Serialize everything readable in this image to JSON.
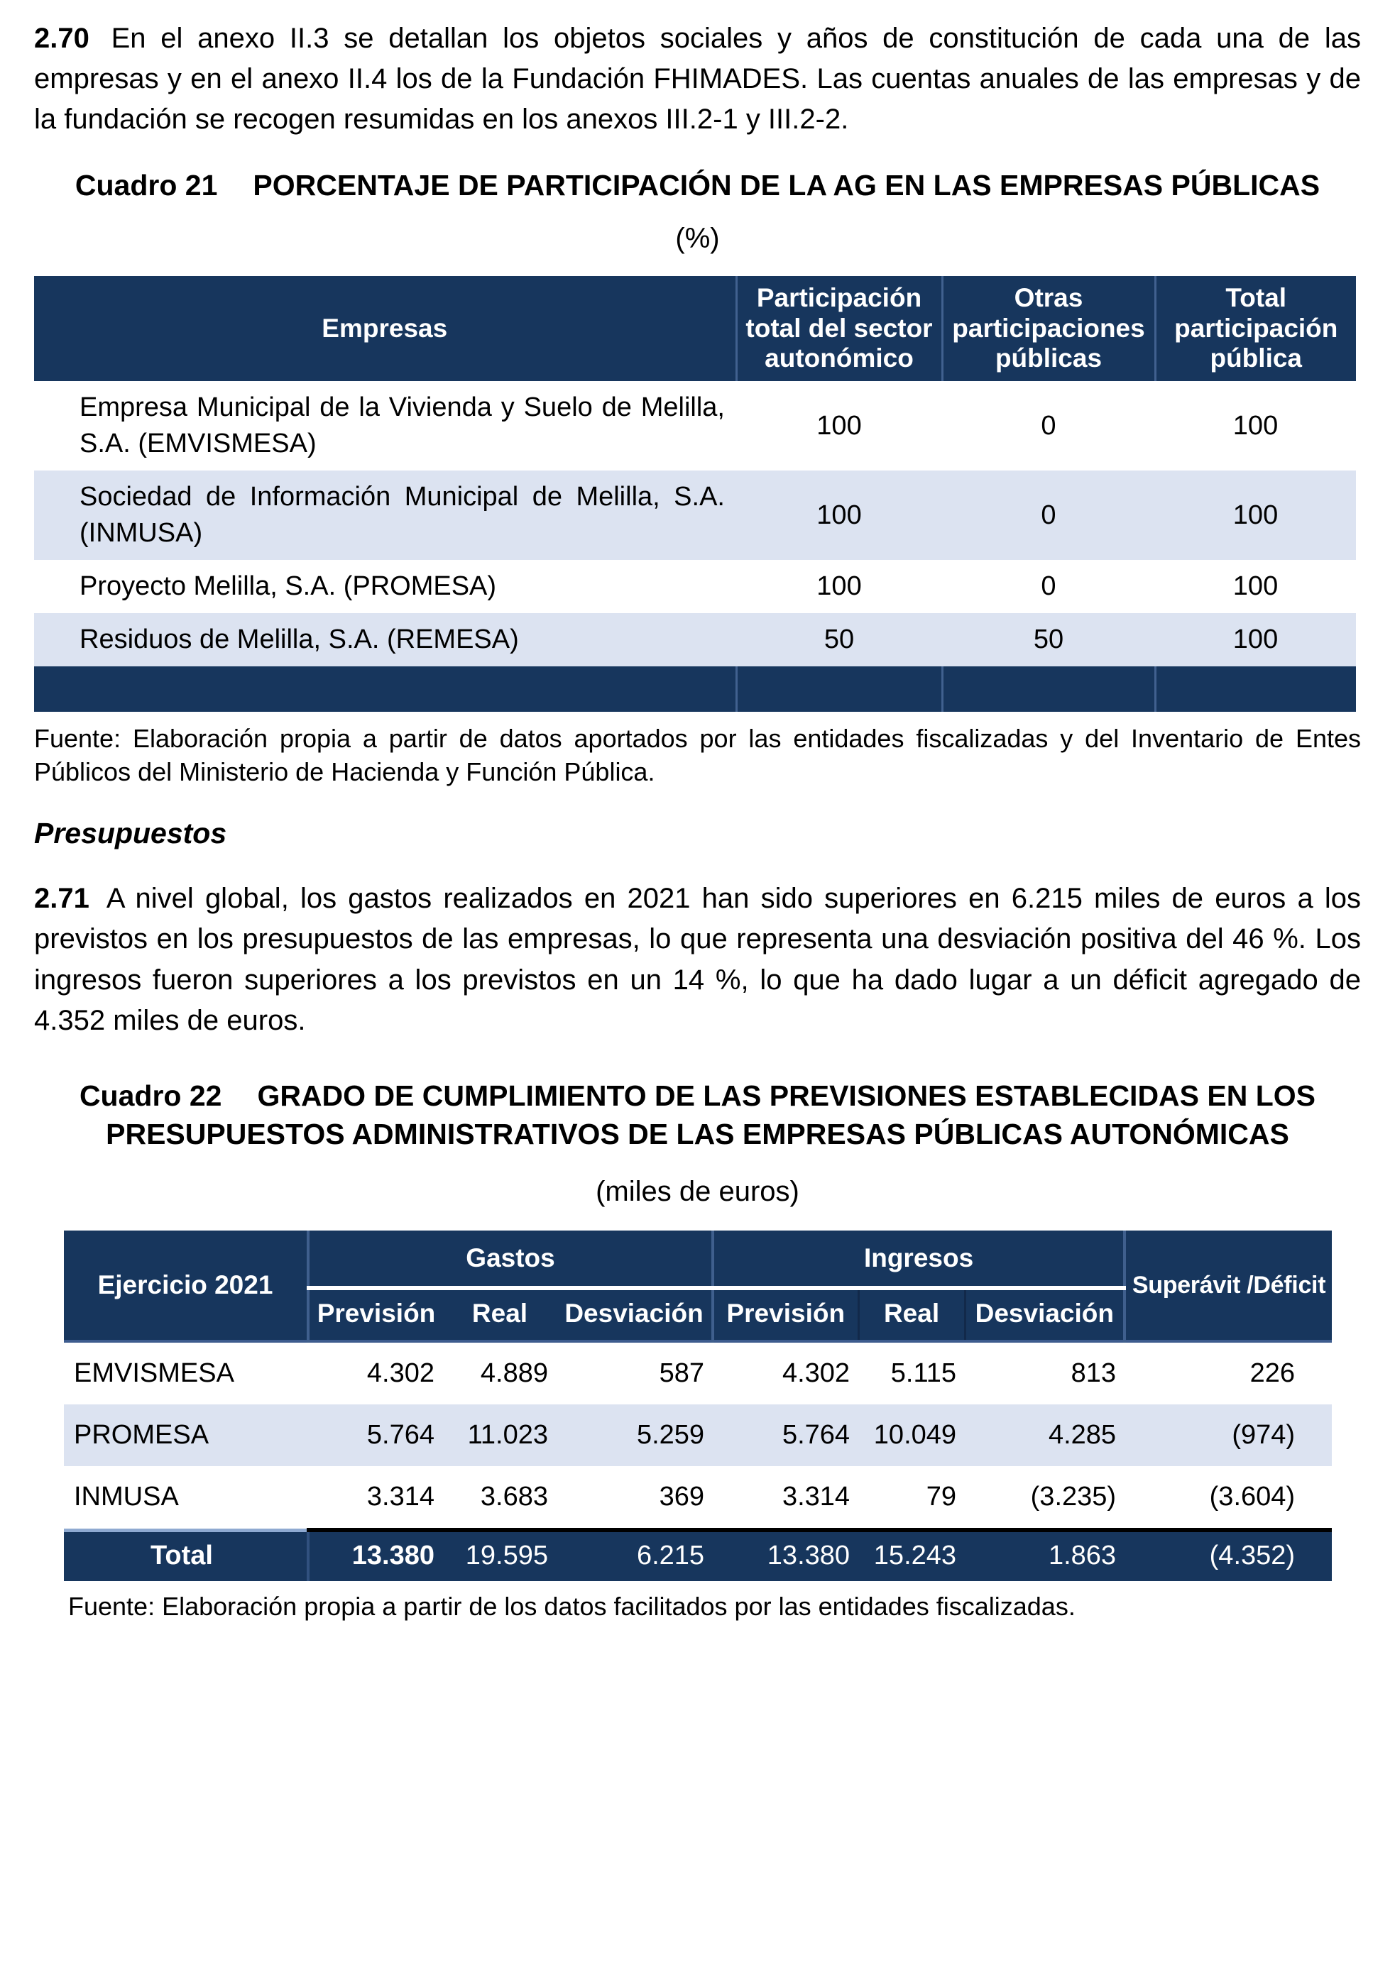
{
  "colors": {
    "header_navy": "#17365D",
    "row_alt_blue": "#DCE3F1",
    "total_row_top_border": "#000000",
    "text": "#000000",
    "background": "#FFFFFF"
  },
  "paragraphs": {
    "p270": {
      "number": "2.70",
      "text": "En el anexo II.3 se detallan los objetos sociales y años de constitución de cada una de las empresas y en el anexo II.4 los de la Fundación FHIMADES. Las cuentas anuales de las empresas y de la fundación se recogen resumidas en los anexos III.2-1 y III.2-2."
    },
    "p271": {
      "number": "2.71",
      "text": "A nivel global, los gastos realizados en 2021 han sido superiores en 6.215 miles de euros a los previstos en los presupuestos de las empresas, lo que representa una desviación positiva del 46 %. Los ingresos fueron superiores a los previstos en un 14 %, lo que ha dado lugar a un déficit agregado de 4.352 miles de euros."
    }
  },
  "section_heading": "Presupuestos",
  "cuadro21": {
    "label": "Cuadro 21",
    "title": "PORCENTAJE DE PARTICIPACIÓN DE LA AG EN LAS EMPRESAS PÚBLICAS",
    "unit": "(%)",
    "table": {
      "headers": [
        "Empresas",
        "Participación total del sector autonómico",
        "Otras participaciones públicas",
        "Total participación pública"
      ],
      "rows": [
        {
          "empresa": "Empresa Municipal de la Vivienda y Suelo de Melilla, S.A. (EMVISMESA)",
          "values": [
            "100",
            "0",
            "100"
          ]
        },
        {
          "empresa": "Sociedad de Información Municipal de Melilla, S.A. (INMUSA)",
          "values": [
            "100",
            "0",
            "100"
          ]
        },
        {
          "empresa": "Proyecto Melilla, S.A. (PROMESA)",
          "values": [
            "100",
            "0",
            "100"
          ]
        },
        {
          "empresa": "Residuos de Melilla, S.A. (REMESA)",
          "values": [
            "50",
            "50",
            "100"
          ]
        }
      ]
    },
    "fuente": "Fuente: Elaboración propia a partir de datos aportados por las entidades fiscalizadas y del Inventario de Entes Públicos del Ministerio de Hacienda y Función Pública."
  },
  "cuadro22": {
    "label": "Cuadro 22",
    "title": "GRADO DE CUMPLIMIENTO DE LAS PREVISIONES ESTABLECIDAS EN LOS PRESUPUESTOS ADMINISTRATIVOS DE LAS EMPRESAS PÚBLICAS AUTONÓMICAS",
    "unit": "(miles de euros)",
    "table": {
      "corner_label": "Ejercicio 2021",
      "group_gastos": "Gastos",
      "group_ingresos": "Ingresos",
      "sub_prevision": "Previsión",
      "sub_real": "Real",
      "sub_desviacion": "Desviación",
      "superavit_label": "Superávit /Déficit",
      "rows": [
        {
          "entidad": "EMVISMESA",
          "gastos_prevision": "4.302",
          "gastos_real": "4.889",
          "gastos_desviacion": "587",
          "ingresos_prevision": "4.302",
          "ingresos_real": "5.115",
          "ingresos_desviacion": "813",
          "superavit": "226"
        },
        {
          "entidad": "PROMESA",
          "gastos_prevision": "5.764",
          "gastos_real": "11.023",
          "gastos_desviacion": "5.259",
          "ingresos_prevision": "5.764",
          "ingresos_real": "10.049",
          "ingresos_desviacion": "4.285",
          "superavit": "(974)"
        },
        {
          "entidad": "INMUSA",
          "gastos_prevision": "3.314",
          "gastos_real": "3.683",
          "gastos_desviacion": "369",
          "ingresos_prevision": "3.314",
          "ingresos_real": "79",
          "ingresos_desviacion": "(3.235)",
          "superavit": "(3.604)"
        }
      ],
      "total": {
        "entidad": "Total",
        "gastos_prevision": "13.380",
        "gastos_real": "19.595",
        "gastos_desviacion": "6.215",
        "ingresos_prevision": "13.380",
        "ingresos_real": "15.243",
        "ingresos_desviacion": "1.863",
        "superavit": "(4.352)"
      }
    },
    "fuente": "Fuente: Elaboración propia a partir de los datos facilitados por las entidades fiscalizadas."
  }
}
